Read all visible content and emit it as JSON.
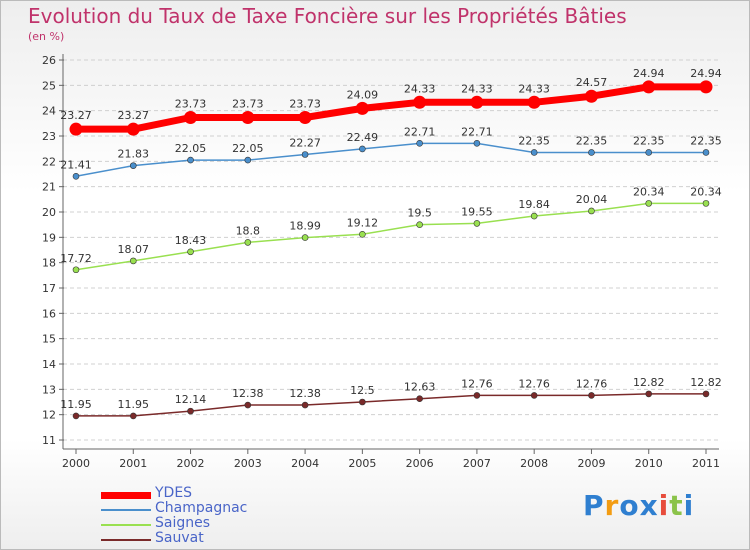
{
  "title": "Evolution du Taux de Taxe Foncière sur les Propriétés Bâties",
  "unit_label": "(en %)",
  "logo": {
    "text": "Proxiti",
    "letters": [
      "P",
      "r",
      "o",
      "x",
      "i",
      "t",
      "i"
    ],
    "colors": [
      "#2f7fd0",
      "#f39c12",
      "#2f7fd0",
      "#2f7fd0",
      "#e74c3c",
      "#8bc34a",
      "#2f7fd0"
    ]
  },
  "chart_data": {
    "type": "line",
    "title": "Evolution du Taux de Taxe Foncière sur les Propriétés Bâties",
    "xlabel": "",
    "ylabel": "(en %)",
    "x": [
      "2000",
      "2001",
      "2002",
      "2003",
      "2004",
      "2005",
      "2006",
      "2007",
      "2008",
      "2009",
      "2010",
      "2011"
    ],
    "ylim": [
      11,
      26
    ],
    "yticks": [
      "26",
      "25",
      "24",
      "23",
      "22",
      "21",
      "20",
      "19",
      "18",
      "17",
      "16",
      "15",
      "14",
      "13",
      "12",
      "11"
    ],
    "grid": true,
    "legend_position": "bottom-left",
    "series": [
      {
        "name": "YDES",
        "color": "#ff0000",
        "values": [
          23.27,
          23.27,
          23.73,
          23.73,
          23.73,
          24.09,
          24.33,
          24.33,
          24.33,
          24.57,
          24.94,
          24.94
        ],
        "labels": [
          "23.27",
          "23.27",
          "23.73",
          "23.73",
          "23.73",
          "24.09",
          "24.33",
          "24.33",
          "24.33",
          "24.57",
          "24.94",
          "24.94"
        ]
      },
      {
        "name": "Champagnac",
        "color": "#4a8fcc",
        "values": [
          21.41,
          21.83,
          22.05,
          22.05,
          22.27,
          22.49,
          22.71,
          22.71,
          22.35,
          22.35,
          22.35,
          22.35
        ],
        "labels": [
          "21.41",
          "21.83",
          "22.05",
          "22.05",
          "22.27",
          "22.49",
          "22.71",
          "22.71",
          "22.35",
          "22.35",
          "22.35",
          "22.35"
        ]
      },
      {
        "name": "Saignes",
        "color": "#99e050",
        "values": [
          17.72,
          18.07,
          18.43,
          18.8,
          18.99,
          19.12,
          19.5,
          19.55,
          19.84,
          20.04,
          20.34,
          20.34
        ],
        "labels": [
          "17.72",
          "18.07",
          "18.43",
          "18.8",
          "18.99",
          "19.12",
          "19.5",
          "19.55",
          "19.84",
          "20.04",
          "20.34",
          "20.34"
        ]
      },
      {
        "name": "Sauvat",
        "color": "#7a2a2a",
        "values": [
          11.95,
          11.95,
          12.14,
          12.38,
          12.38,
          12.5,
          12.63,
          12.76,
          12.76,
          12.76,
          12.82,
          12.82
        ],
        "labels": [
          "11.95",
          "11.95",
          "12.14",
          "12.38",
          "12.38",
          "12.5",
          "12.63",
          "12.76",
          "12.76",
          "12.76",
          "12.82",
          "12.82"
        ]
      }
    ]
  }
}
